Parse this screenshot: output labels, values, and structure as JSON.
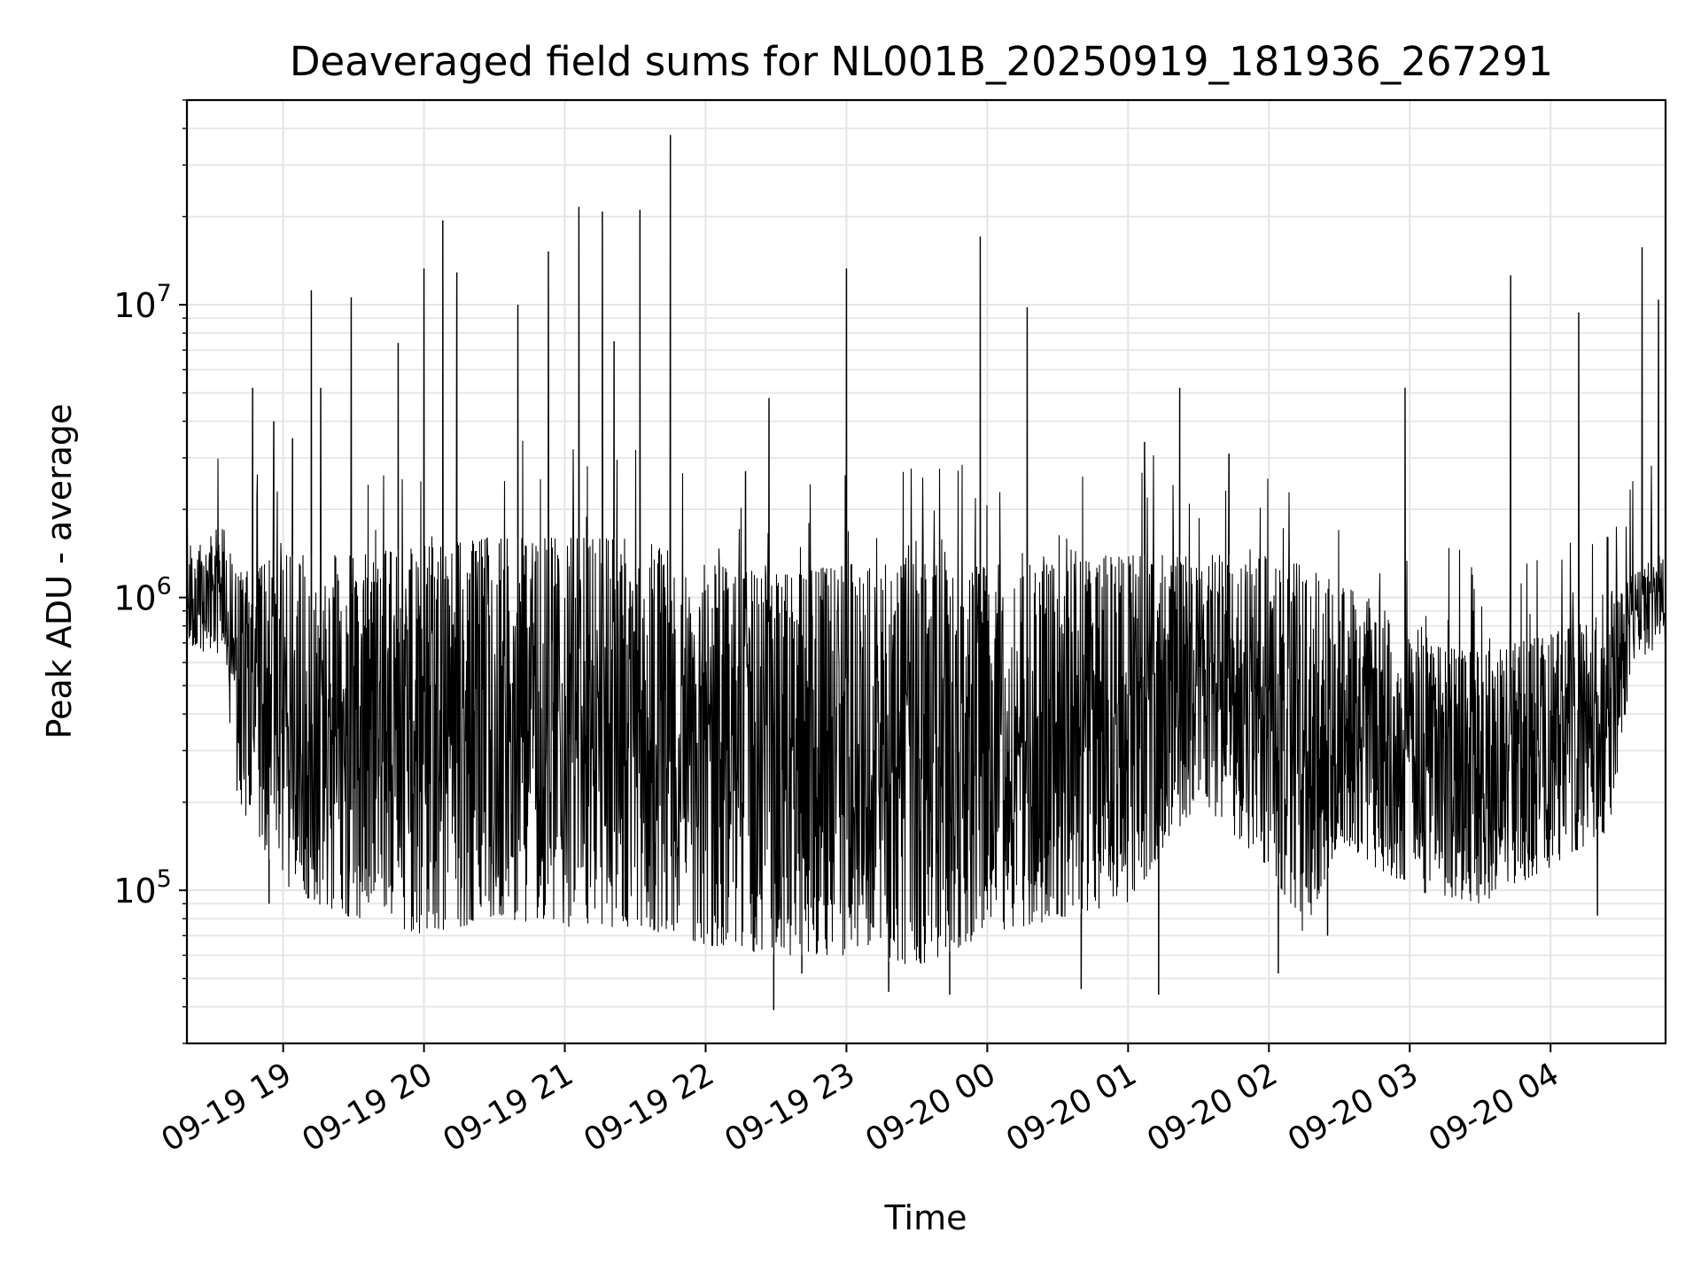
{
  "chart_data": {
    "type": "line",
    "title": "Deaveraged field sums for NL001B_20250919_181936_267291",
    "xlabel": "Time",
    "ylabel": "Peak ADU - average",
    "x_range": [
      "2025-09-19 18:19",
      "2025-09-20 04:49"
    ],
    "x_ticks": [
      "09-19 19",
      "09-19 20",
      "09-19 21",
      "09-19 22",
      "09-19 23",
      "09-20 00",
      "09-20 01",
      "09-20 02",
      "09-20 03",
      "09-20 04"
    ],
    "y_scale": "log",
    "ylim": [
      30000,
      50000000
    ],
    "y_ticks": [
      100000,
      1000000,
      10000000
    ],
    "y_tick_labels": [
      {
        "base": "10",
        "exp": "5"
      },
      {
        "base": "10",
        "exp": "6"
      },
      {
        "base": "10",
        "exp": "7"
      }
    ],
    "grid": true,
    "line_color": "#000000",
    "grid_color": "#e6e6e6",
    "envelope": [
      {
        "t": "18:19",
        "low": 700000,
        "high": 1500000
      },
      {
        "t": "18:35",
        "low": 600000,
        "high": 1800000
      },
      {
        "t": "18:40",
        "low": 200000,
        "high": 1200000
      },
      {
        "t": "18:50",
        "low": 150000,
        "high": 1300000
      },
      {
        "t": "19:00",
        "low": 100000,
        "high": 1400000
      },
      {
        "t": "19:30",
        "low": 80000,
        "high": 1400000
      },
      {
        "t": "20:00",
        "low": 70000,
        "high": 1500000
      },
      {
        "t": "20:30",
        "low": 80000,
        "high": 1600000
      },
      {
        "t": "21:00",
        "low": 75000,
        "high": 1600000
      },
      {
        "t": "21:30",
        "low": 75000,
        "high": 1600000
      },
      {
        "t": "22:00",
        "low": 65000,
        "high": 1300000
      },
      {
        "t": "22:30",
        "low": 60000,
        "high": 1200000
      },
      {
        "t": "23:00",
        "low": 60000,
        "high": 1300000
      },
      {
        "t": "23:30",
        "low": 55000,
        "high": 1300000
      },
      {
        "t": "00:00",
        "low": 70000,
        "high": 1300000
      },
      {
        "t": "00:30",
        "low": 80000,
        "high": 1300000
      },
      {
        "t": "01:00",
        "low": 90000,
        "high": 1400000
      },
      {
        "t": "01:30",
        "low": 200000,
        "high": 1400000
      },
      {
        "t": "02:00",
        "low": 120000,
        "high": 1400000
      },
      {
        "t": "02:15",
        "low": 70000,
        "high": 1300000
      },
      {
        "t": "02:30",
        "low": 150000,
        "high": 1100000
      },
      {
        "t": "02:45",
        "low": 120000,
        "high": 1000000
      },
      {
        "t": "03:00",
        "low": 100000,
        "high": 700000
      },
      {
        "t": "03:30",
        "low": 90000,
        "high": 650000
      },
      {
        "t": "04:00",
        "low": 120000,
        "high": 750000
      },
      {
        "t": "04:25",
        "low": 160000,
        "high": 900000
      },
      {
        "t": "04:35",
        "low": 600000,
        "high": 1200000
      },
      {
        "t": "04:49",
        "low": 700000,
        "high": 1500000
      }
    ],
    "spikes": [
      {
        "t": "18:47",
        "y": 5200000
      },
      {
        "t": "18:56",
        "y": 4000000
      },
      {
        "t": "19:04",
        "y": 3500000
      },
      {
        "t": "19:12",
        "y": 11200000
      },
      {
        "t": "19:16",
        "y": 5200000
      },
      {
        "t": "19:29",
        "y": 10600000
      },
      {
        "t": "19:49",
        "y": 7400000
      },
      {
        "t": "20:00",
        "y": 13300000
      },
      {
        "t": "20:08",
        "y": 19400000
      },
      {
        "t": "20:14",
        "y": 12900000
      },
      {
        "t": "20:40",
        "y": 10000000
      },
      {
        "t": "20:53",
        "y": 15200000
      },
      {
        "t": "21:06",
        "y": 21600000
      },
      {
        "t": "21:16",
        "y": 20800000
      },
      {
        "t": "21:21",
        "y": 7500000
      },
      {
        "t": "21:32",
        "y": 21100000
      },
      {
        "t": "21:45",
        "y": 38000000
      },
      {
        "t": "22:17",
        "y": 2700000
      },
      {
        "t": "22:27",
        "y": 4800000
      },
      {
        "t": "23:00",
        "y": 13300000
      },
      {
        "t": "23:57",
        "y": 17100000
      },
      {
        "t": "00:17",
        "y": 9800000
      },
      {
        "t": "01:07",
        "y": 3400000
      },
      {
        "t": "01:22",
        "y": 5200000
      },
      {
        "t": "01:43",
        "y": 3100000
      },
      {
        "t": "02:58",
        "y": 5200000
      },
      {
        "t": "03:43",
        "y": 12600000
      },
      {
        "t": "04:12",
        "y": 9400000
      },
      {
        "t": "04:39",
        "y": 15700000
      },
      {
        "t": "04:46",
        "y": 10400000
      }
    ],
    "dips": [
      {
        "t": "18:54",
        "y": 90000
      },
      {
        "t": "22:29",
        "y": 39000
      },
      {
        "t": "22:41",
        "y": 52000
      },
      {
        "t": "23:18",
        "y": 45000
      },
      {
        "t": "23:44",
        "y": 44000
      },
      {
        "t": "00:40",
        "y": 46000
      },
      {
        "t": "01:13",
        "y": 44000
      },
      {
        "t": "02:04",
        "y": 52000
      },
      {
        "t": "02:25",
        "y": 70000
      },
      {
        "t": "04:20",
        "y": 82000
      }
    ]
  }
}
